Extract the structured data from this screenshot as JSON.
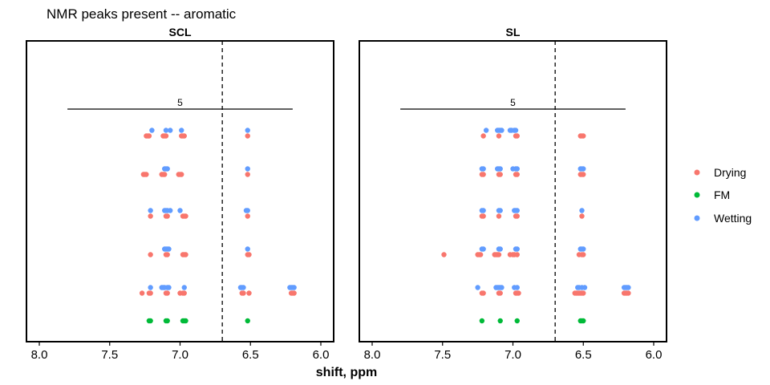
{
  "chart_data": {
    "type": "scatter",
    "title": "NMR peaks present -- aromatic",
    "xlabel": "shift, ppm",
    "ylabel": "",
    "xlim": [
      8.0,
      6.0
    ],
    "x_reversed": true,
    "x_ticks": [
      "8.0",
      "7.5",
      "7.0",
      "6.5",
      "6.0"
    ],
    "vline": 6.7,
    "legend_position": "right",
    "legend": [
      {
        "name": "Drying",
        "color": "#F8766D"
      },
      {
        "name": "FM",
        "color": "#00BA38"
      },
      {
        "name": "Wetting",
        "color": "#619CFF"
      }
    ],
    "panels": [
      {
        "name": "SCL",
        "annotation": {
          "label": "5",
          "x_from": 7.8,
          "x_to": 6.2,
          "row": 6
        },
        "rows": [
          {
            "row": 0,
            "points": [
              {
                "series": "FM",
                "x": [
                  7.22,
                  7.21,
                  7.1,
                  7.09,
                  6.98,
                  6.97,
                  6.96,
                  6.52
                ]
              }
            ]
          },
          {
            "row": 1,
            "points": [
              {
                "series": "Drying",
                "x": [
                  7.27,
                  7.22,
                  7.21,
                  7.1,
                  7.09,
                  7.0,
                  6.98,
                  6.97,
                  6.56,
                  6.55,
                  6.51,
                  6.21,
                  6.2,
                  6.19
                ]
              },
              {
                "series": "Wetting",
                "x": [
                  7.21,
                  7.13,
                  7.12,
                  7.11,
                  7.09,
                  7.08,
                  6.97,
                  6.57,
                  6.56,
                  6.55,
                  6.22,
                  6.21,
                  6.2,
                  6.19
                ]
              }
            ]
          },
          {
            "row": 2,
            "points": [
              {
                "series": "Drying",
                "x": [
                  7.21,
                  7.1,
                  7.09,
                  6.98,
                  6.97,
                  6.96,
                  6.52,
                  6.51
                ]
              },
              {
                "series": "Wetting",
                "x": [
                  7.11,
                  7.1,
                  7.09,
                  7.08,
                  6.52
                ]
              }
            ]
          },
          {
            "row": 3,
            "points": [
              {
                "series": "Drying",
                "x": [
                  7.21,
                  7.1,
                  7.09,
                  6.98,
                  6.97,
                  6.96,
                  6.52
                ]
              },
              {
                "series": "Wetting",
                "x": [
                  7.21,
                  7.11,
                  7.1,
                  7.09,
                  7.07,
                  7.0,
                  6.53,
                  6.52
                ]
              }
            ]
          },
          {
            "row": 4,
            "points": [
              {
                "series": "Drying",
                "x": [
                  7.26,
                  7.25,
                  7.24,
                  7.13,
                  7.12,
                  7.11,
                  7.01,
                  7.0,
                  6.99,
                  6.52
                ]
              },
              {
                "series": "Wetting",
                "x": [
                  7.11,
                  7.1,
                  7.09,
                  6.52
                ]
              }
            ]
          },
          {
            "row": 5,
            "points": [
              {
                "series": "Drying",
                "x": [
                  7.24,
                  7.23,
                  7.22,
                  7.12,
                  7.11,
                  7.1,
                  6.99,
                  6.98,
                  6.97,
                  6.52
                ]
              },
              {
                "series": "Wetting",
                "x": [
                  7.2,
                  7.1,
                  7.07,
                  6.99,
                  6.52
                ]
              }
            ]
          }
        ]
      },
      {
        "name": "SL",
        "annotation": {
          "label": "5",
          "x_from": 7.8,
          "x_to": 6.2,
          "row": 6
        },
        "rows": [
          {
            "row": 0,
            "points": [
              {
                "series": "FM",
                "x": [
                  7.22,
                  7.09,
                  6.97,
                  6.52,
                  6.51,
                  6.5
                ]
              }
            ]
          },
          {
            "row": 1,
            "points": [
              {
                "series": "Drying",
                "x": [
                  7.22,
                  7.21,
                  7.1,
                  7.09,
                  6.98,
                  6.97,
                  6.96,
                  6.56,
                  6.55,
                  6.54,
                  6.53,
                  6.52,
                  6.51,
                  6.5,
                  6.21,
                  6.2,
                  6.19,
                  6.18
                ]
              },
              {
                "series": "Wetting",
                "x": [
                  7.25,
                  7.12,
                  7.11,
                  7.1,
                  7.09,
                  7.08,
                  6.99,
                  6.97,
                  6.54,
                  6.53,
                  6.51,
                  6.49,
                  6.21,
                  6.2,
                  6.19,
                  6.18
                ]
              }
            ]
          },
          {
            "row": 2,
            "points": [
              {
                "series": "Drying",
                "x": [
                  7.49,
                  7.25,
                  7.24,
                  7.23,
                  7.13,
                  7.12,
                  7.11,
                  7.1,
                  7.02,
                  7.0,
                  6.99,
                  6.97,
                  6.53,
                  6.51,
                  6.5
                ]
              },
              {
                "series": "Wetting",
                "x": [
                  7.22,
                  7.21,
                  7.1,
                  7.09,
                  6.98,
                  6.97,
                  6.52,
                  6.51,
                  6.5
                ]
              }
            ]
          },
          {
            "row": 3,
            "points": [
              {
                "series": "Drying",
                "x": [
                  7.22,
                  7.21,
                  7.1,
                  6.98,
                  6.97,
                  6.51
                ]
              },
              {
                "series": "Wetting",
                "x": [
                  7.22,
                  7.21,
                  7.1,
                  7.09,
                  6.99,
                  6.98,
                  6.97,
                  6.51
                ]
              }
            ]
          },
          {
            "row": 4,
            "points": [
              {
                "series": "Drying",
                "x": [
                  7.22,
                  7.21,
                  7.1,
                  7.09,
                  6.98,
                  6.97,
                  6.52,
                  6.51,
                  6.5
                ]
              },
              {
                "series": "Wetting",
                "x": [
                  7.22,
                  7.21,
                  7.11,
                  7.1,
                  7.09,
                  7.0,
                  6.98,
                  6.97,
                  6.52,
                  6.51,
                  6.5
                ]
              }
            ]
          },
          {
            "row": 5,
            "points": [
              {
                "series": "Drying",
                "x": [
                  7.21,
                  7.1,
                  6.98,
                  6.97,
                  6.52,
                  6.51,
                  6.5
                ]
              },
              {
                "series": "Wetting",
                "x": [
                  7.19,
                  7.11,
                  7.1,
                  7.09,
                  7.08,
                  7.02,
                  7.01,
                  6.99,
                  6.98
                ]
              }
            ]
          }
        ]
      }
    ]
  }
}
